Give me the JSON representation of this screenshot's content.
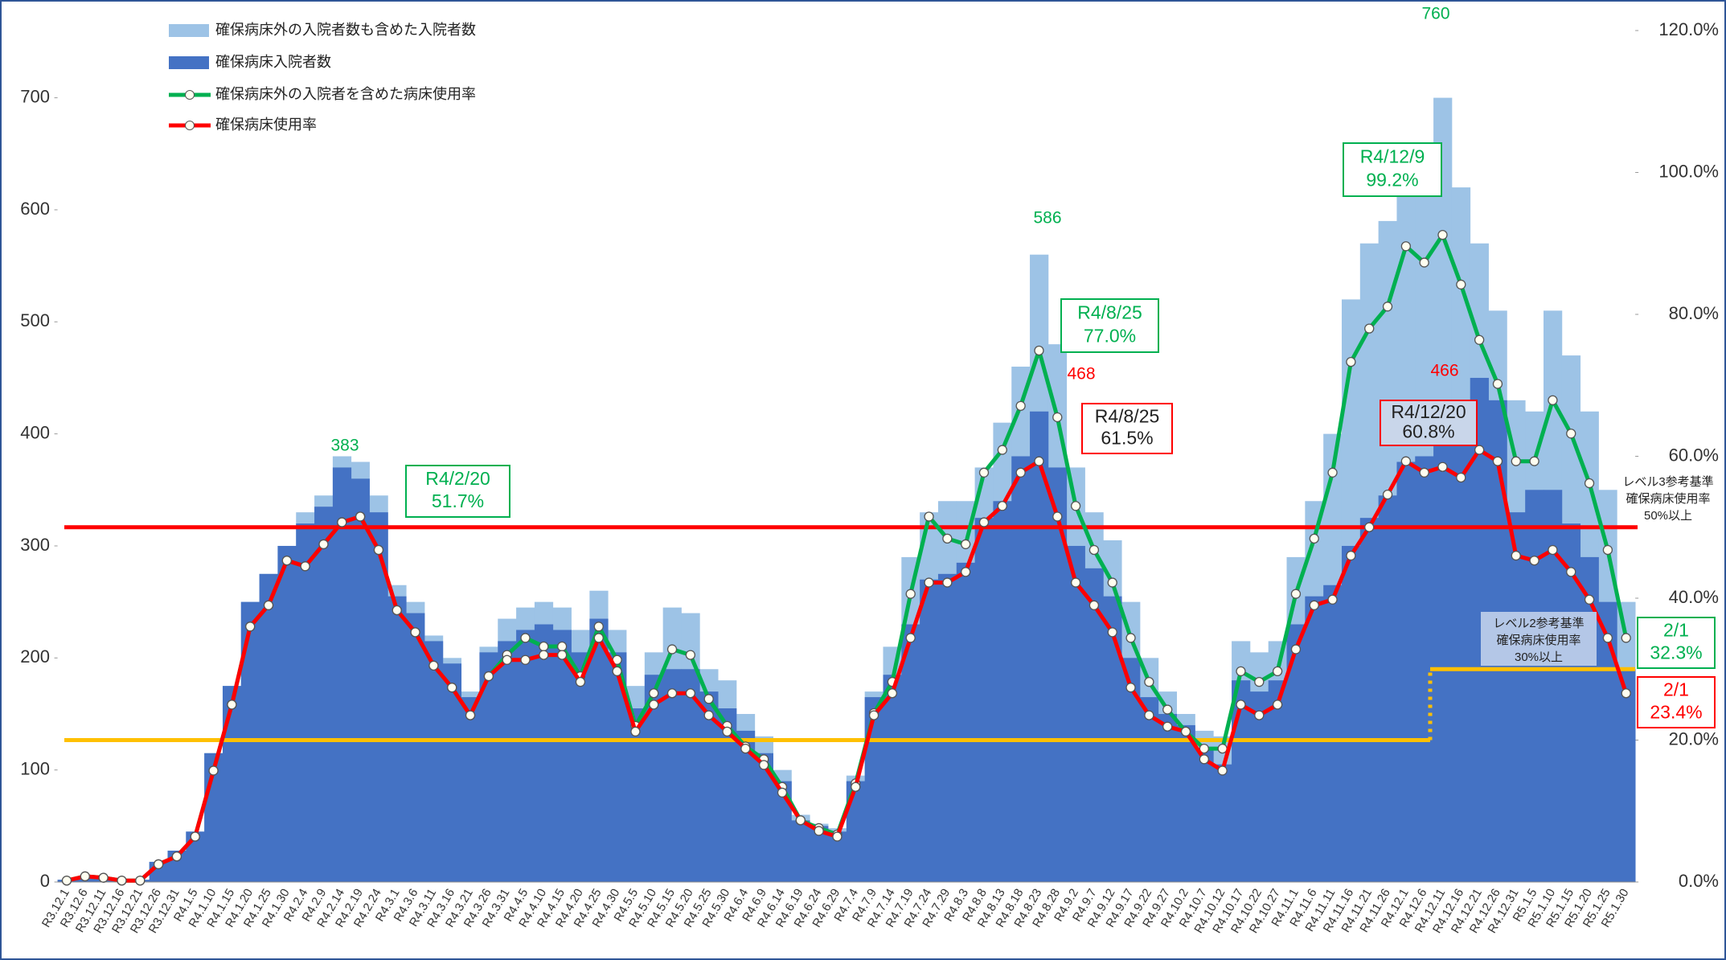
{
  "chart_data": {
    "type": "bar",
    "categories": [
      "R3.12.1",
      "R3.12.6",
      "R3.12.11",
      "R3.12.16",
      "R3.12.21",
      "R3.12.26",
      "R3.12.31",
      "R4.1.5",
      "R4.1.10",
      "R4.1.15",
      "R4.1.20",
      "R4.1.25",
      "R4.1.30",
      "R4.2.4",
      "R4.2.9",
      "R4.2.14",
      "R4.2.19",
      "R4.2.24",
      "R4.3.1",
      "R4.3.6",
      "R4.3.11",
      "R4.3.16",
      "R4.3.21",
      "R4.3.26",
      "R4.3.31",
      "R4.4.5",
      "R4.4.10",
      "R4.4.15",
      "R4.4.20",
      "R4.4.25",
      "R4.4.30",
      "R4.5.5",
      "R4.5.10",
      "R4.5.15",
      "R4.5.20",
      "R4.5.25",
      "R4.5.30",
      "R4.6.4",
      "R4.6.9",
      "R4.6.14",
      "R4.6.19",
      "R4.6.24",
      "R4.6.29",
      "R4.7.4",
      "R4.7.9",
      "R4.7.14",
      "R4.7.19",
      "R4.7.24",
      "R4.7.29",
      "R4.8.3",
      "R4.8.8",
      "R4.8.13",
      "R4.8.18",
      "R4.8.23",
      "R4.8.28",
      "R4.9.2",
      "R4.9.7",
      "R4.9.12",
      "R4.9.17",
      "R4.9.22",
      "R4.9.27",
      "R4.10.2",
      "R4.10.7",
      "R4.10.12",
      "R4.10.17",
      "R4.10.22",
      "R4.10.27",
      "R4.11.1",
      "R4.11.6",
      "R4.11.11",
      "R4.11.16",
      "R4.11.21",
      "R4.11.26",
      "R4.12.1",
      "R4.12.6",
      "R4.12.11",
      "R4.12.16",
      "R4.12.21",
      "R4.12.26",
      "R4.12.31",
      "R5.1.5",
      "R5.1.10",
      "R5.1.15",
      "R5.1.20",
      "R5.1.25",
      "R5.1.30"
    ],
    "series": [
      {
        "name": "確保病床外の入院者数も含めた入院者数",
        "type": "bar",
        "color": "#9dc3e6",
        "values": [
          2,
          5,
          4,
          2,
          2,
          18,
          28,
          45,
          115,
          175,
          250,
          275,
          300,
          330,
          345,
          380,
          375,
          345,
          265,
          250,
          220,
          200,
          170,
          210,
          235,
          245,
          250,
          245,
          225,
          260,
          225,
          175,
          205,
          245,
          240,
          190,
          180,
          150,
          130,
          100,
          60,
          52,
          48,
          95,
          170,
          210,
          290,
          330,
          340,
          340,
          370,
          410,
          460,
          560,
          480,
          370,
          330,
          305,
          250,
          200,
          170,
          150,
          135,
          130,
          215,
          205,
          215,
          290,
          340,
          400,
          520,
          570,
          590,
          660,
          640,
          700,
          620,
          570,
          510,
          430,
          420,
          510,
          470,
          420,
          350,
          250
        ]
      },
      {
        "name": "確保病床入院者数",
        "type": "bar",
        "color": "#4472c4",
        "values": [
          2,
          5,
          4,
          2,
          2,
          18,
          28,
          45,
          115,
          175,
          250,
          275,
          300,
          320,
          335,
          370,
          360,
          330,
          255,
          240,
          215,
          195,
          165,
          205,
          215,
          225,
          230,
          225,
          205,
          235,
          205,
          155,
          185,
          190,
          190,
          170,
          155,
          135,
          115,
          90,
          55,
          50,
          45,
          90,
          165,
          185,
          230,
          270,
          275,
          285,
          325,
          340,
          380,
          420,
          370,
          300,
          280,
          255,
          200,
          165,
          150,
          140,
          120,
          105,
          180,
          170,
          180,
          230,
          255,
          265,
          300,
          325,
          345,
          375,
          380,
          420,
          430,
          450,
          430,
          330,
          350,
          350,
          320,
          290,
          250,
          190
        ]
      },
      {
        "name": "確保病床外の入院者を含めた病床使用率",
        "type": "line",
        "axis": "y2",
        "color": "#00b050",
        "values": [
          0.2,
          0.8,
          0.6,
          0.2,
          0.2,
          2.5,
          3.6,
          6.4,
          15.7,
          25,
          36,
          39,
          45.3,
          44.5,
          47.6,
          50.7,
          51.5,
          46.8,
          38.3,
          35.2,
          30.5,
          27.4,
          23.5,
          29,
          32,
          34.4,
          33.2,
          33.2,
          29,
          36,
          31.3,
          22,
          26.6,
          32.8,
          32,
          25.8,
          22,
          19.1,
          17.3,
          13.4,
          8.7,
          7.6,
          6.7,
          13.9,
          23.8,
          28.2,
          40.6,
          51.5,
          48.4,
          47.6,
          57.7,
          60.9,
          67.1,
          74.9,
          65.5,
          53,
          46.8,
          42.2,
          34.4,
          28.2,
          24.3,
          21.2,
          18.8,
          18.8,
          29.7,
          28.2,
          29.7,
          40.6,
          48.4,
          57.7,
          73.3,
          78,
          81.1,
          89.6,
          87.3,
          91.2,
          84.2,
          76.4,
          70.2,
          59.3,
          59.3,
          67.9,
          63.2,
          56.2,
          46.8,
          34.4
        ]
      },
      {
        "name": "確保病床使用率",
        "type": "line",
        "axis": "y2",
        "color": "#ff0000",
        "values": [
          0.2,
          0.8,
          0.6,
          0.2,
          0.2,
          2.5,
          3.6,
          6.4,
          15.7,
          25,
          36,
          39,
          45.3,
          44.5,
          47.6,
          50.7,
          51.5,
          46.8,
          38.3,
          35.2,
          30.5,
          27.4,
          23.5,
          29,
          31.3,
          31.3,
          32,
          32,
          28.2,
          34.4,
          29.7,
          21.2,
          25,
          26.6,
          26.6,
          23.5,
          21.2,
          18.8,
          16.5,
          12.6,
          8.7,
          7.2,
          6.4,
          13.4,
          23.5,
          26.6,
          34.4,
          42.2,
          42.2,
          43.7,
          50.7,
          53,
          57.7,
          59.3,
          51.5,
          42.2,
          39,
          35.2,
          27.4,
          23.5,
          21.9,
          21.2,
          17.3,
          15.7,
          25,
          23.5,
          25,
          32.8,
          39,
          39.8,
          46,
          50,
          54.6,
          59.3,
          57.7,
          58.5,
          57,
          60.9,
          59.3,
          46,
          45.3,
          46.8,
          43.7,
          39.8,
          34.4,
          26.6
        ]
      }
    ],
    "ylim": [
      0,
      760
    ],
    "yticks": [
      0,
      100,
      200,
      300,
      400,
      500,
      600,
      700
    ],
    "y2lim": [
      0,
      120
    ],
    "y2ticks": [
      {
        "value": 0,
        "label": "0.0%"
      },
      {
        "value": 20,
        "label": "20.0%"
      },
      {
        "value": 40,
        "label": "40.0%"
      },
      {
        "value": 60,
        "label": "60.0%"
      },
      {
        "value": 80,
        "label": "80.0%"
      },
      {
        "value": 100,
        "label": "100.0%"
      },
      {
        "value": 120,
        "label": "120.0%"
      }
    ],
    "reference_lines": [
      {
        "value": 50,
        "color": "#ff0000"
      },
      {
        "value": 20,
        "color": "#ffc000"
      },
      {
        "value": 30,
        "color": "#ffc000"
      }
    ],
    "reference_labels": [
      [
        "レベル3参考基準",
        "確保病床使用率",
        "50%以上"
      ],
      [
        "レベル2参考基準",
        "確保病床使用率",
        "30%以上"
      ]
    ],
    "peak_labels": [
      "383",
      "586",
      "760",
      "468",
      "466"
    ],
    "callouts": [
      [
        "R4/2/20",
        "51.7%"
      ],
      [
        "R4/8/25",
        "77.0%"
      ],
      [
        "R4/8/25",
        "61.5%"
      ],
      [
        "R4/12/9",
        "99.2%"
      ],
      [
        "R4/12/20",
        "60.8%"
      ],
      [
        "2/1",
        "32.3%"
      ],
      [
        "2/1",
        "23.4%"
      ]
    ],
    "legend": "upper left"
  }
}
